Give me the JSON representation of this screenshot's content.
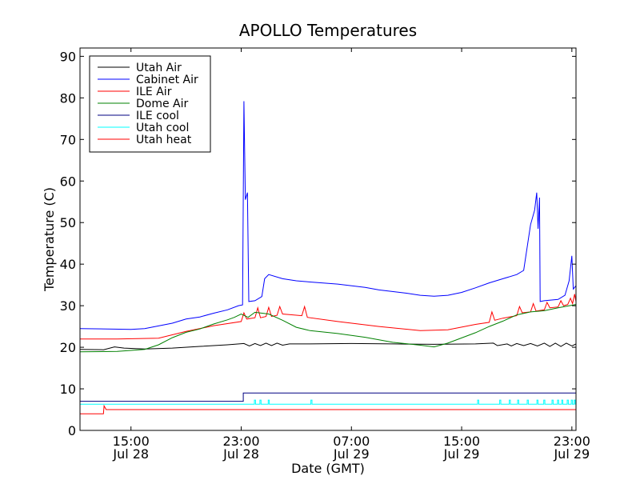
{
  "chart_data": {
    "type": "line",
    "title": "APOLLO Temperatures",
    "xlabel": "Date (GMT)",
    "ylabel": "Temperature (C)",
    "xlim": [
      11.3,
      47.3
    ],
    "ylim": [
      0,
      92
    ],
    "x_units": "hours since 2011-07-28 00:00 GMT",
    "x_ticks": [
      {
        "x": 15,
        "time": "15:00",
        "date": "Jul 28"
      },
      {
        "x": 23,
        "time": "23:00",
        "date": "Jul 28"
      },
      {
        "x": 31,
        "time": "07:00",
        "date": "Jul 29"
      },
      {
        "x": 39,
        "time": "15:00",
        "date": "Jul 29"
      },
      {
        "x": 47,
        "time": "23:00",
        "date": "Jul 29"
      }
    ],
    "y_ticks": [
      "0",
      "10",
      "20",
      "30",
      "40",
      "50",
      "60",
      "70",
      "80",
      "90"
    ],
    "legend_position": "top-left",
    "series": [
      {
        "name": "Utah Air",
        "color": "#000000",
        "points": [
          [
            11.3,
            19.5
          ],
          [
            13.0,
            19.4
          ],
          [
            13.8,
            20.1
          ],
          [
            14.5,
            19.8
          ],
          [
            16.0,
            19.6
          ],
          [
            18.0,
            19.8
          ],
          [
            20.0,
            20.2
          ],
          [
            22.0,
            20.6
          ],
          [
            23.2,
            20.9
          ],
          [
            23.6,
            20.3
          ],
          [
            24.0,
            20.9
          ],
          [
            24.4,
            20.4
          ],
          [
            24.8,
            21.0
          ],
          [
            25.2,
            20.4
          ],
          [
            25.6,
            21.0
          ],
          [
            26.0,
            20.5
          ],
          [
            26.5,
            20.8
          ],
          [
            28.0,
            20.8
          ],
          [
            31.0,
            20.9
          ],
          [
            34.0,
            20.8
          ],
          [
            37.0,
            20.7
          ],
          [
            40.0,
            20.8
          ],
          [
            41.3,
            21.0
          ],
          [
            41.6,
            20.4
          ],
          [
            42.3,
            20.8
          ],
          [
            42.6,
            20.3
          ],
          [
            43.0,
            20.9
          ],
          [
            43.5,
            20.4
          ],
          [
            44.0,
            20.9
          ],
          [
            44.5,
            20.3
          ],
          [
            45.0,
            21.0
          ],
          [
            45.4,
            20.2
          ],
          [
            45.8,
            21.0
          ],
          [
            46.2,
            20.2
          ],
          [
            46.6,
            21.0
          ],
          [
            47.0,
            20.3
          ],
          [
            47.3,
            20.8
          ]
        ]
      },
      {
        "name": "Cabinet Air",
        "color": "#0000ff",
        "points": [
          [
            11.3,
            24.5
          ],
          [
            15.0,
            24.3
          ],
          [
            16.0,
            24.5
          ],
          [
            18.0,
            25.8
          ],
          [
            19.0,
            26.8
          ],
          [
            20.0,
            27.3
          ],
          [
            21.0,
            28.2
          ],
          [
            22.0,
            29.0
          ],
          [
            22.8,
            30.0
          ],
          [
            23.1,
            30.2
          ],
          [
            23.2,
            79.2
          ],
          [
            23.3,
            55.5
          ],
          [
            23.45,
            57.2
          ],
          [
            23.55,
            31.0
          ],
          [
            24.0,
            31.2
          ],
          [
            24.5,
            32.2
          ],
          [
            24.7,
            36.5
          ],
          [
            25.0,
            37.5
          ],
          [
            26.0,
            36.5
          ],
          [
            27.0,
            36.0
          ],
          [
            28.0,
            35.7
          ],
          [
            30.0,
            35.2
          ],
          [
            32.0,
            34.4
          ],
          [
            33.0,
            33.8
          ],
          [
            35.0,
            33.0
          ],
          [
            36.0,
            32.5
          ],
          [
            37.0,
            32.3
          ],
          [
            38.0,
            32.5
          ],
          [
            39.0,
            33.2
          ],
          [
            40.0,
            34.3
          ],
          [
            41.0,
            35.5
          ],
          [
            42.0,
            36.5
          ],
          [
            43.0,
            37.5
          ],
          [
            43.5,
            38.5
          ],
          [
            44.0,
            49.5
          ],
          [
            44.3,
            53.0
          ],
          [
            44.45,
            57.2
          ],
          [
            44.55,
            48.5
          ],
          [
            44.65,
            56.0
          ],
          [
            44.7,
            31.0
          ],
          [
            45.0,
            31.2
          ],
          [
            46.0,
            31.5
          ],
          [
            46.5,
            32.5
          ],
          [
            46.8,
            36.0
          ],
          [
            47.0,
            42.0
          ],
          [
            47.1,
            34.0
          ],
          [
            47.3,
            34.8
          ]
        ]
      },
      {
        "name": "ILE Air",
        "color": "#ff0000",
        "points": [
          [
            11.3,
            22.0
          ],
          [
            14.0,
            22.0
          ],
          [
            17.0,
            22.2
          ],
          [
            19.0,
            23.8
          ],
          [
            21.0,
            25.2
          ],
          [
            23.0,
            26.2
          ],
          [
            23.2,
            28.3
          ],
          [
            23.4,
            26.8
          ],
          [
            24.0,
            27.1
          ],
          [
            24.2,
            29.5
          ],
          [
            24.4,
            27.1
          ],
          [
            24.8,
            27.4
          ],
          [
            25.0,
            29.6
          ],
          [
            25.2,
            27.4
          ],
          [
            25.6,
            27.7
          ],
          [
            25.8,
            29.8
          ],
          [
            26.0,
            28.0
          ],
          [
            27.4,
            27.6
          ],
          [
            27.6,
            29.8
          ],
          [
            27.8,
            27.2
          ],
          [
            30.0,
            26.2
          ],
          [
            33.0,
            25.0
          ],
          [
            36.0,
            24.0
          ],
          [
            38.0,
            24.2
          ],
          [
            40.0,
            25.5
          ],
          [
            41.0,
            26.0
          ],
          [
            41.2,
            28.5
          ],
          [
            41.4,
            26.5
          ],
          [
            42.0,
            27.0
          ],
          [
            43.0,
            27.6
          ],
          [
            43.2,
            29.8
          ],
          [
            43.4,
            28.3
          ],
          [
            44.0,
            28.5
          ],
          [
            44.2,
            30.5
          ],
          [
            44.4,
            28.7
          ],
          [
            45.0,
            29.0
          ],
          [
            45.2,
            30.8
          ],
          [
            45.4,
            29.5
          ],
          [
            46.0,
            29.7
          ],
          [
            46.2,
            31.2
          ],
          [
            46.4,
            30.0
          ],
          [
            46.7,
            30.3
          ],
          [
            46.9,
            31.8
          ],
          [
            47.05,
            30.5
          ],
          [
            47.2,
            32.8
          ],
          [
            47.3,
            31.0
          ]
        ]
      },
      {
        "name": "Dome Air",
        "color": "#008000",
        "points": [
          [
            11.3,
            18.9
          ],
          [
            14.0,
            19.0
          ],
          [
            16.0,
            19.5
          ],
          [
            17.0,
            20.6
          ],
          [
            18.0,
            22.3
          ],
          [
            19.0,
            23.6
          ],
          [
            20.0,
            24.4
          ],
          [
            21.0,
            25.6
          ],
          [
            22.0,
            26.6
          ],
          [
            22.5,
            27.2
          ],
          [
            23.0,
            28.0
          ],
          [
            23.5,
            27.2
          ],
          [
            24.0,
            28.4
          ],
          [
            25.0,
            28.0
          ],
          [
            26.0,
            26.5
          ],
          [
            27.0,
            24.8
          ],
          [
            28.0,
            24.0
          ],
          [
            30.0,
            23.3
          ],
          [
            32.0,
            22.4
          ],
          [
            34.0,
            21.2
          ],
          [
            36.0,
            20.5
          ],
          [
            37.0,
            20.1
          ],
          [
            38.0,
            21.0
          ],
          [
            40.0,
            23.5
          ],
          [
            41.0,
            25.0
          ],
          [
            42.0,
            26.3
          ],
          [
            43.0,
            27.8
          ],
          [
            44.0,
            28.5
          ],
          [
            45.0,
            28.8
          ],
          [
            46.0,
            29.5
          ],
          [
            47.3,
            30.3
          ]
        ]
      },
      {
        "name": "ILE cool",
        "color": "#000080",
        "points": [
          [
            11.3,
            7.0
          ],
          [
            23.15,
            7.0
          ],
          [
            23.15,
            9.0
          ],
          [
            47.3,
            9.0
          ]
        ]
      },
      {
        "name": "Utah cool",
        "color": "#00ffff",
        "points": [
          [
            11.3,
            6.3
          ],
          [
            47.3,
            6.3
          ]
        ],
        "pulses": [
          24.0,
          24.4,
          25.0,
          28.1,
          40.2,
          41.8,
          42.5,
          43.1,
          43.8,
          44.5,
          45.0,
          45.6,
          46.0,
          46.3,
          46.7,
          47.0,
          47.2
        ]
      },
      {
        "name": "Utah heat",
        "color": "#ff0000",
        "points": [
          [
            11.3,
            4.0
          ],
          [
            13.0,
            4.0
          ],
          [
            13.05,
            5.9
          ],
          [
            13.2,
            5.0
          ],
          [
            47.3,
            5.0
          ]
        ]
      }
    ]
  }
}
